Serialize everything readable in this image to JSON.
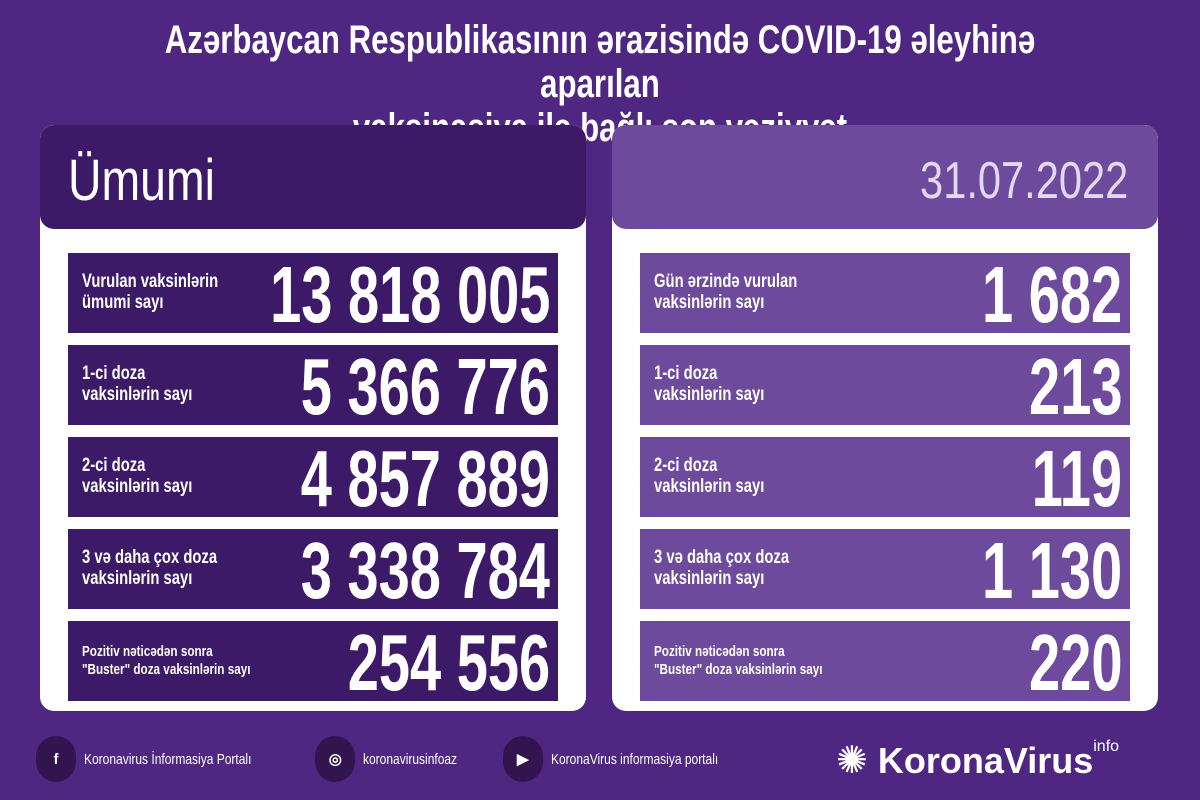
{
  "title": [
    "Azərbaycan Respublikasının ərazisində COVID-19 əleyhinə aparılan",
    "vaksinasiya ilə bağlı son vəziyyət"
  ],
  "left": {
    "heading": "Ümumi",
    "rows": [
      {
        "label": [
          "Vurulan vaksinlərin",
          "ümumi sayı"
        ],
        "value": "13 818 005"
      },
      {
        "label": [
          "1-ci doza",
          "vaksinlərin sayı"
        ],
        "value": "5 366 776"
      },
      {
        "label": [
          "2-ci doza",
          "vaksinlərin sayı"
        ],
        "value": "4 857 889"
      },
      {
        "label": [
          "3 və daha çox doza",
          "vaksinlərin sayı"
        ],
        "value": "3 338 784"
      },
      {
        "label": [
          "Pozitiv nəticədən sonra",
          "\"Buster\" doza vaksinlərin sayı"
        ],
        "value": "254 556"
      }
    ]
  },
  "right": {
    "heading": "31.07.2022",
    "rows": [
      {
        "label": [
          "Gün ərzində vurulan",
          "vaksinlərin sayı"
        ],
        "value": "1 682"
      },
      {
        "label": [
          "1-ci doza",
          "vaksinlərin sayı"
        ],
        "value": "213"
      },
      {
        "label": [
          "2-ci doza",
          "vaksinlərin sayı"
        ],
        "value": "119"
      },
      {
        "label": [
          "3 və daha çox doza",
          "vaksinlərin sayı"
        ],
        "value": "1 130"
      },
      {
        "label": [
          "Pozitiv nəticədən sonra",
          "\"Buster\" doza vaksinlərin sayı"
        ],
        "value": "220"
      }
    ]
  },
  "footer": {
    "facebook": "Koronavirus İnformasiya Portalı",
    "instagram": "koronavirusinfoaz",
    "youtube": "KoronaVirus informasiya portalı",
    "logo": "KoronaVirus",
    "logo_sup": "info"
  },
  "colors": {
    "background": "#4f2783",
    "dark_row": "#3c1a68",
    "light_row": "#6d4a9c"
  }
}
